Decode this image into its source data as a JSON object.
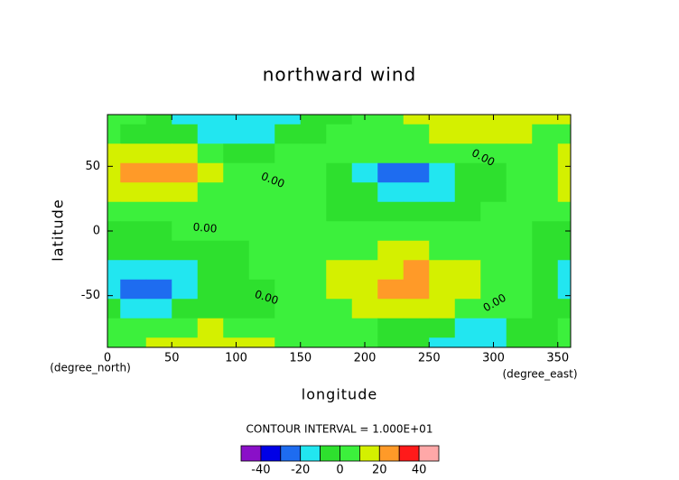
{
  "chart_data": {
    "type": "contour",
    "title": "northward wind",
    "xlabel": "longitude",
    "ylabel": "latitude",
    "xunit": "(degree_east)",
    "yunit": "(degree_north)",
    "contour_interval": "CONTOUR INTERVAL = 1.000E+01",
    "xlim": [
      0,
      360
    ],
    "ylim": [
      -90,
      90
    ],
    "xticks": [
      0,
      50,
      100,
      150,
      200,
      250,
      300,
      350
    ],
    "yticks": [
      -50,
      0,
      50
    ],
    "lons": [
      0,
      20,
      40,
      60,
      80,
      100,
      120,
      140,
      160,
      180,
      200,
      220,
      240,
      260,
      280,
      300,
      320,
      340,
      360
    ],
    "lats": [
      90,
      75,
      60,
      45,
      30,
      15,
      0,
      -15,
      -30,
      -45,
      -60,
      -75,
      -90
    ],
    "z": [
      [
        3,
        2,
        -5,
        -12,
        -14,
        -15,
        -14,
        -12,
        -8,
        -2,
        3,
        8,
        12,
        14,
        15,
        15,
        14,
        13,
        11
      ],
      [
        0,
        -2,
        -4,
        -8,
        -11,
        -12,
        -11,
        -8,
        -4,
        0,
        4,
        6,
        9,
        11,
        12,
        12,
        11,
        9,
        5
      ],
      [
        11,
        14,
        14,
        12,
        8,
        -2,
        -2,
        0,
        2,
        3,
        2,
        1,
        2,
        3,
        4,
        5,
        6,
        6,
        11
      ],
      [
        16,
        23,
        26,
        21,
        12,
        6,
        4,
        3,
        0,
        -6,
        -14,
        -21,
        -22,
        -16,
        -10,
        -4,
        2,
        9,
        16
      ],
      [
        14,
        16,
        16,
        13,
        8,
        5,
        4,
        4,
        2,
        -4,
        -10,
        -14,
        -14,
        -11,
        -6,
        -2,
        3,
        8,
        14
      ],
      [
        4,
        5,
        5,
        5,
        4,
        3,
        3,
        3,
        2,
        -1,
        -3,
        -4,
        -4,
        -3,
        -1,
        1,
        3,
        4,
        4
      ],
      [
        -2,
        -1,
        -1,
        0,
        1,
        2,
        3,
        3,
        3,
        2,
        1,
        0,
        0,
        0,
        1,
        2,
        0,
        -1,
        -2
      ],
      [
        -8,
        -9,
        -9,
        -7,
        -5,
        -2,
        0,
        2,
        4,
        6,
        8,
        10,
        10,
        9,
        6,
        3,
        0,
        -4,
        -8
      ],
      [
        -13,
        -18,
        -20,
        -15,
        -8,
        -3,
        0,
        2,
        6,
        12,
        16,
        19,
        21,
        18,
        14,
        8,
        2,
        -5,
        -13
      ],
      [
        -14,
        -21,
        -24,
        -17,
        -9,
        -4,
        -1,
        1,
        5,
        12,
        17,
        22,
        23,
        19,
        14,
        7,
        0,
        -8,
        -14
      ],
      [
        -8,
        -12,
        -12,
        -9,
        -5,
        -3,
        -1,
        1,
        4,
        8,
        10,
        11,
        11,
        10,
        7,
        3,
        0,
        -4,
        -8
      ],
      [
        0,
        2,
        5,
        8,
        10,
        9,
        7,
        4,
        2,
        1,
        0,
        -2,
        -6,
        -10,
        -12,
        -11,
        -6,
        -2,
        0
      ],
      [
        3,
        6,
        10,
        13,
        15,
        14,
        12,
        8,
        4,
        2,
        0,
        -4,
        -10,
        -13,
        -14,
        -12,
        -8,
        -2,
        3
      ]
    ],
    "levels": [
      -50,
      -40,
      -30,
      -20,
      -10,
      0,
      10,
      20,
      30,
      40,
      50
    ],
    "colors": [
      "#8a10c8",
      "#0000e6",
      "#1e6cf0",
      "#22e6f0",
      "#2ee02e",
      "#3cf03c",
      "#d4f000",
      "#ff9a28",
      "#ff1a1a",
      "#ffa8a8"
    ],
    "colorbar_ticks": [
      -40,
      -20,
      0,
      20,
      40
    ],
    "contour_labels": [
      "0.00",
      "0.00",
      "0.00",
      "0.00",
      "0.00"
    ]
  }
}
